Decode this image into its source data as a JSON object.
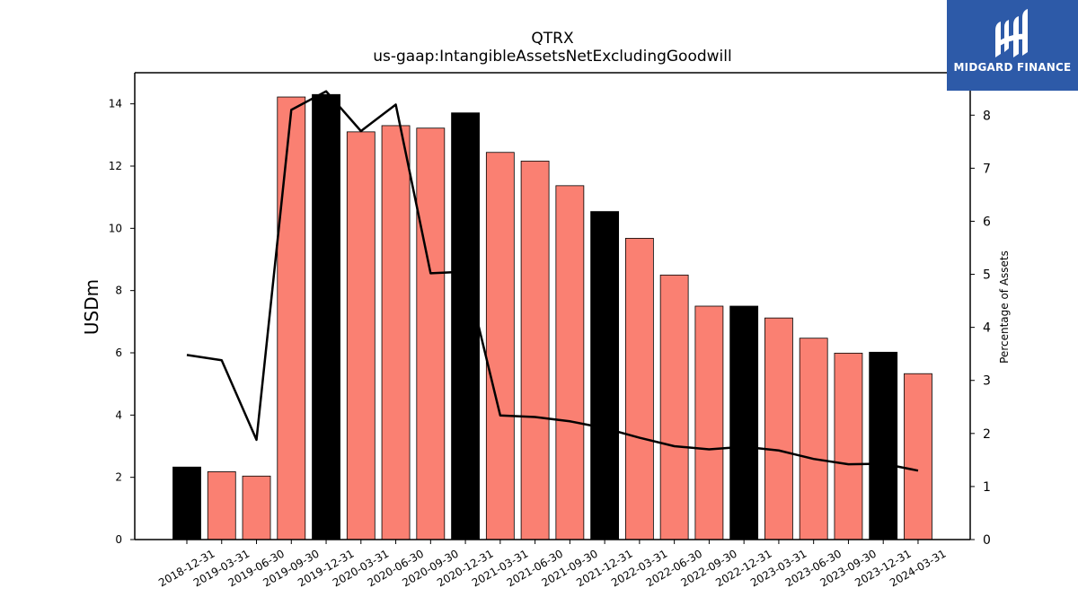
{
  "chart_data": {
    "type": "bar",
    "title": "QTRX",
    "subtitle": "us-gaap:IntangibleAssetsNetExcludingGoodwill",
    "ylabel": "USDm",
    "y2label": "Percentage of Assets",
    "ylim": [
      0,
      15
    ],
    "y2lim": [
      0,
      8.8
    ],
    "yticks": [
      "0",
      "2",
      "4",
      "6",
      "8",
      "10",
      "12",
      "14"
    ],
    "y2ticks": [
      "0",
      "1",
      "2",
      "3",
      "4",
      "5",
      "6",
      "7",
      "8"
    ],
    "categories": [
      "2018-12-31",
      "2019-03-31",
      "2019-06-30",
      "2019-09-30",
      "2019-12-31",
      "2020-03-31",
      "2020-06-30",
      "2020-09-30",
      "2020-12-31",
      "2021-03-31",
      "2021-06-30",
      "2021-09-30",
      "2021-12-31",
      "2022-03-31",
      "2022-06-30",
      "2022-09-30",
      "2022-12-31",
      "2023-03-31",
      "2023-06-30",
      "2023-09-30",
      "2023-12-31",
      "2024-03-31"
    ],
    "series": [
      {
        "type": "bar",
        "values": [
          2.33,
          2.18,
          2.04,
          14.22,
          14.3,
          13.1,
          13.3,
          13.22,
          13.71,
          12.44,
          12.16,
          11.37,
          10.54,
          9.68,
          8.5,
          7.5,
          7.5,
          7.12,
          6.47,
          5.99,
          6.02,
          5.33
        ],
        "colors": [
          "#000000",
          "#fa8072",
          "#fa8072",
          "#fa8072",
          "#000000",
          "#fa8072",
          "#fa8072",
          "#fa8072",
          "#000000",
          "#fa8072",
          "#fa8072",
          "#fa8072",
          "#000000",
          "#fa8072",
          "#fa8072",
          "#fa8072",
          "#000000",
          "#fa8072",
          "#fa8072",
          "#fa8072",
          "#000000",
          "#fa8072"
        ]
      },
      {
        "type": "line",
        "axis": "right",
        "values": [
          3.48,
          3.38,
          1.88,
          8.1,
          8.45,
          7.7,
          8.2,
          5.02,
          5.05,
          2.34,
          2.31,
          2.23,
          2.1,
          1.92,
          1.76,
          1.7,
          1.75,
          1.68,
          1.52,
          1.42,
          1.43,
          1.3
        ],
        "color": "#000000"
      }
    ]
  },
  "logo": {
    "text": "MIDGARD FINANCE",
    "color": "#2d5aa8"
  }
}
